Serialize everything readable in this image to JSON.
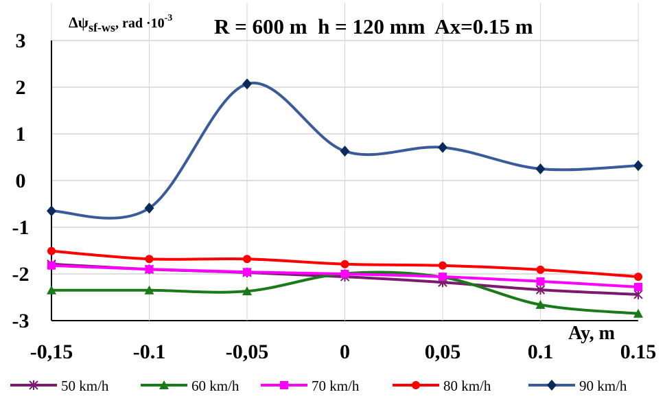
{
  "chart_data": {
    "type": "line",
    "title": {
      "ylabel_main": "Δψ",
      "ylabel_sub": "sf-ws",
      "ylabel_unit": ", rad ·10",
      "ylabel_exp": "-3",
      "params": "R = 600 m  h = 120 mm  Ax=0.15 m"
    },
    "xlabel": "Ay, m",
    "x": [
      -0.15,
      -0.1,
      -0.05,
      0,
      0.05,
      0.1,
      0.15
    ],
    "x_tick_labels": [
      "-0,15",
      "-0.1",
      "-0,05",
      "0",
      "0,05",
      "0.1",
      "0.15"
    ],
    "ylim": [
      -3,
      3
    ],
    "y_ticks": [
      3,
      2,
      1,
      0,
      -1,
      -2,
      -3
    ],
    "grid": true,
    "legend_position": "bottom",
    "series": [
      {
        "name": "50 km/h",
        "color": "#7b1a6e",
        "marker": "star",
        "values": [
          -1.79,
          -1.9,
          -1.97,
          -2.06,
          -2.18,
          -2.34,
          -2.44
        ]
      },
      {
        "name": "60 km/h",
        "color": "#1a7a1a",
        "marker": "triangle",
        "values": [
          -2.35,
          -2.35,
          -2.37,
          -1.99,
          -2.07,
          -2.66,
          -2.85
        ]
      },
      {
        "name": "70 km/h",
        "color": "#ff00ff",
        "marker": "square",
        "values": [
          -1.82,
          -1.9,
          -1.96,
          -2.0,
          -2.06,
          -2.16,
          -2.28
        ]
      },
      {
        "name": "80 km/h",
        "color": "#ff0000",
        "marker": "circle",
        "values": [
          -1.51,
          -1.68,
          -1.68,
          -1.79,
          -1.82,
          -1.91,
          -2.06
        ]
      },
      {
        "name": "90 km/h",
        "color": "#3a5a9a",
        "marker": "diamond",
        "values": [
          -0.65,
          -0.59,
          2.07,
          0.63,
          0.71,
          0.25,
          0.32
        ]
      }
    ]
  }
}
